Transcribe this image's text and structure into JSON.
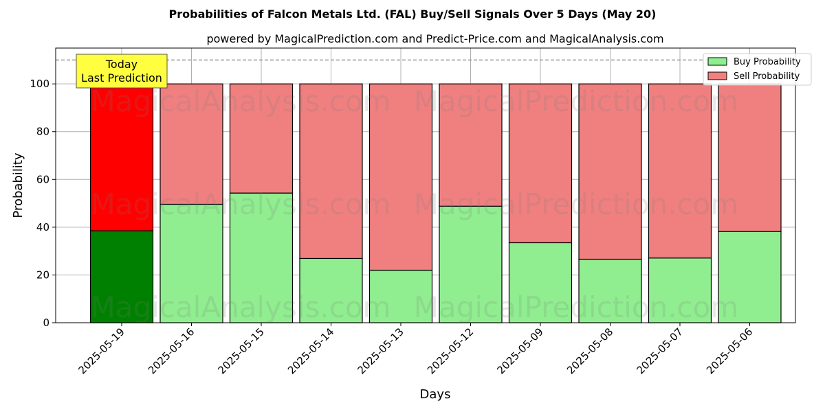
{
  "chart_data": {
    "type": "bar",
    "stacked": true,
    "title": "Probabilities of Falcon Metals Ltd. (FAL) Buy/Sell Signals Over 5 Days (May 20)",
    "subtitle": "powered by MagicalPrediction.com and Predict-Price.com and MagicalAnalysis.com",
    "xlabel": "Days",
    "ylabel": "Probability",
    "ylim": [
      0,
      115
    ],
    "yticks": [
      0,
      20,
      40,
      60,
      80,
      100
    ],
    "grid": true,
    "legend_position": "top-right",
    "categories": [
      "2025-05-19",
      "2025-05-16",
      "2025-05-15",
      "2025-05-14",
      "2025-05-13",
      "2025-05-12",
      "2025-05-09",
      "2025-05-08",
      "2025-05-07",
      "2025-05-06"
    ],
    "series": [
      {
        "name": "Buy Probability",
        "color": "#90ee90",
        "highlight_color": "#008000",
        "values": [
          38.5,
          49.6,
          54.3,
          26.9,
          22.0,
          48.8,
          33.5,
          26.6,
          27.1,
          38.2
        ]
      },
      {
        "name": "Sell Probability",
        "color": "#f08080",
        "highlight_color": "#ff0000",
        "values": [
          61.5,
          50.4,
          45.7,
          73.1,
          78.0,
          51.2,
          66.5,
          73.4,
          72.9,
          61.8
        ]
      }
    ],
    "reference_line": {
      "y": 110,
      "style": "dashed"
    },
    "annotation": {
      "lines": [
        "Today",
        "Last Prediction"
      ],
      "category": "2025-05-19",
      "background": "#ffff40"
    },
    "watermarks": [
      "MagicalAnalysis.com",
      "MagicalPrediction.com"
    ]
  }
}
